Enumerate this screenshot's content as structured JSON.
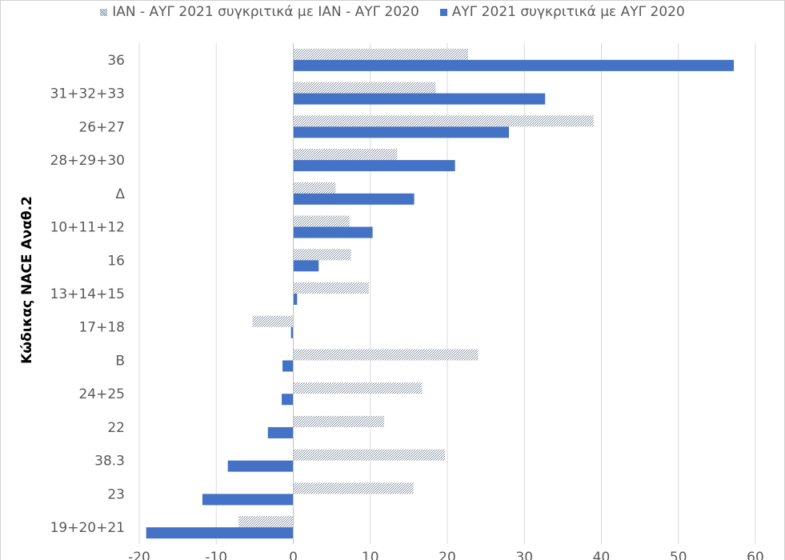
{
  "chart_data": {
    "type": "bar",
    "orientation": "horizontal",
    "ylabel": "Κώδικας NACE Αναθ.2",
    "xlabel": "",
    "title": "",
    "xlim": [
      -20,
      60
    ],
    "x_ticks": [
      "-20",
      "-10",
      "0",
      "10",
      "20",
      "30",
      "40",
      "50",
      "60"
    ],
    "grid": true,
    "legend_position": "top",
    "categories": [
      "36",
      "31+32+33",
      "26+27",
      "28+29+30",
      "Δ",
      "10+11+12",
      "16",
      "13+14+15",
      "17+18",
      "B",
      "24+25",
      "22",
      "38.3",
      "23",
      "19+20+21"
    ],
    "series": [
      {
        "name": "ΙΑΝ - ΑΥΓ 2021 συγκριτικά με ΙΑΝ - ΑΥΓ 2020",
        "color": "#a8b3c4",
        "pattern": "hatched",
        "values": [
          22.7,
          18.5,
          39.0,
          13.5,
          5.5,
          7.3,
          7.5,
          9.8,
          -5.3,
          24.0,
          16.7,
          11.8,
          19.7,
          15.6,
          -7.1
        ]
      },
      {
        "name": "ΑΥΓ 2021 συγκριτικά με ΑΥΓ 2020",
        "color": "#4472c4",
        "pattern": "solid",
        "values": [
          57.2,
          32.7,
          28.0,
          21.0,
          15.7,
          10.3,
          3.3,
          0.5,
          -0.3,
          -1.4,
          -1.5,
          -3.3,
          -8.5,
          -11.8,
          -19.1
        ]
      }
    ]
  }
}
